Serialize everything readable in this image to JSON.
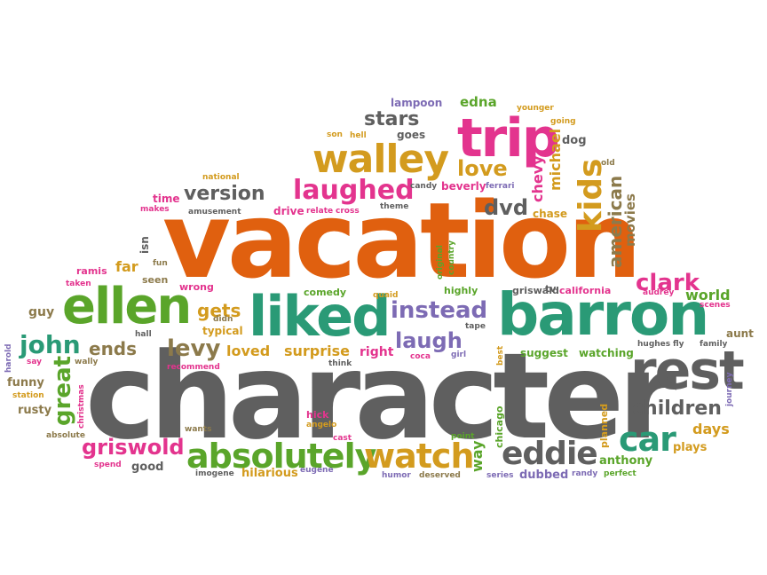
{
  "palette": {
    "orange": "#e0600f",
    "gray": "#5f5f5f",
    "green": "#5aa52a",
    "teal": "#2a9a76",
    "pink": "#e3348e",
    "purple": "#7d6bb4",
    "gold": "#d39b1e",
    "olive": "#8c7a4b"
  },
  "words": [
    "vacation",
    "character",
    "barron",
    "liked",
    "ellen",
    "trip",
    "rest",
    "walley",
    "absolutely",
    "watch",
    "eddie",
    "car",
    "instead",
    "kids",
    "laughed",
    "griswold",
    "children",
    "clark",
    "john",
    "great",
    "laugh",
    "levy",
    "love",
    "version",
    "dvd",
    "american",
    "stars",
    "gets",
    "ends",
    "loved",
    "surprise",
    "right",
    "michael",
    "chevy",
    "edna",
    "lampoon",
    "days",
    "anthony",
    "world",
    "movies",
    "younger",
    "national",
    "guy",
    "funny",
    "rusty",
    "station",
    "absolute",
    "spend",
    "good",
    "imogene",
    "hilarious",
    "eugene",
    "humor",
    "deserved",
    "series",
    "dubbed",
    "randy",
    "perfect",
    "plays",
    "way",
    "chicago",
    "planned",
    "point",
    "cast",
    "hick",
    "angelo",
    "think",
    "say",
    "harold",
    "wally",
    "recommend",
    "christmas",
    "wants",
    "didn",
    "typical",
    "wrong",
    "seen",
    "far",
    "ramis",
    "taken",
    "fun",
    "isn",
    "time",
    "makes",
    "amusement",
    "drive",
    "relate",
    "cross",
    "theme",
    "candy",
    "beverly",
    "ferrari",
    "son",
    "hell",
    "goes",
    "going",
    "dog",
    "old",
    "chase",
    "comedy",
    "quaid",
    "highly",
    "original",
    "country",
    "griswald",
    "tv",
    "california",
    "audrey",
    "scenes",
    "tape",
    "coca",
    "girl",
    "best",
    "suggest",
    "watching",
    "hughes",
    "fly",
    "family",
    "aunt",
    "journey",
    "hall"
  ]
}
